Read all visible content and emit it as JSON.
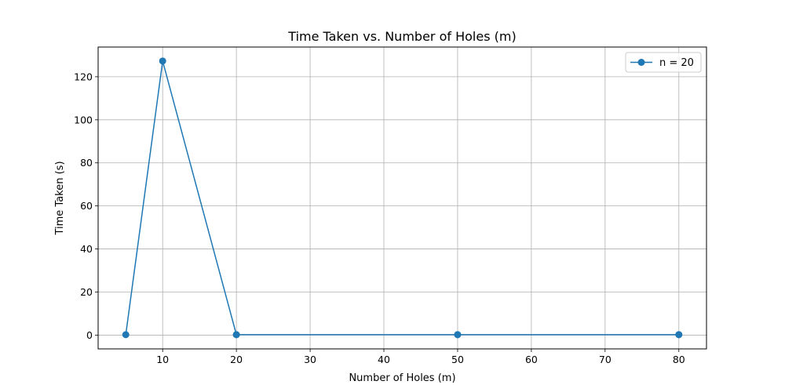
{
  "chart_data": {
    "type": "line",
    "title": "Time Taken vs. Number of Holes (m)",
    "xlabel": "Number of Holes (m)",
    "ylabel": "Time Taken (s)",
    "xlim": [
      1.25,
      83.75
    ],
    "ylim": [
      -6.4,
      133.8
    ],
    "xticks": [
      10,
      20,
      30,
      40,
      50,
      60,
      70,
      80
    ],
    "yticks": [
      0,
      20,
      40,
      60,
      80,
      100,
      120
    ],
    "grid": true,
    "legend_position": "top-right",
    "series": [
      {
        "name": "n = 20",
        "color": "#1f77b4",
        "marker": "circle",
        "x": [
          5,
          10,
          20,
          80,
          50,
          20,
          50,
          80
        ],
        "y": [
          0.2,
          127.3,
          0.2,
          0.2,
          0.2,
          0.2,
          0.2,
          0.2
        ]
      }
    ]
  }
}
